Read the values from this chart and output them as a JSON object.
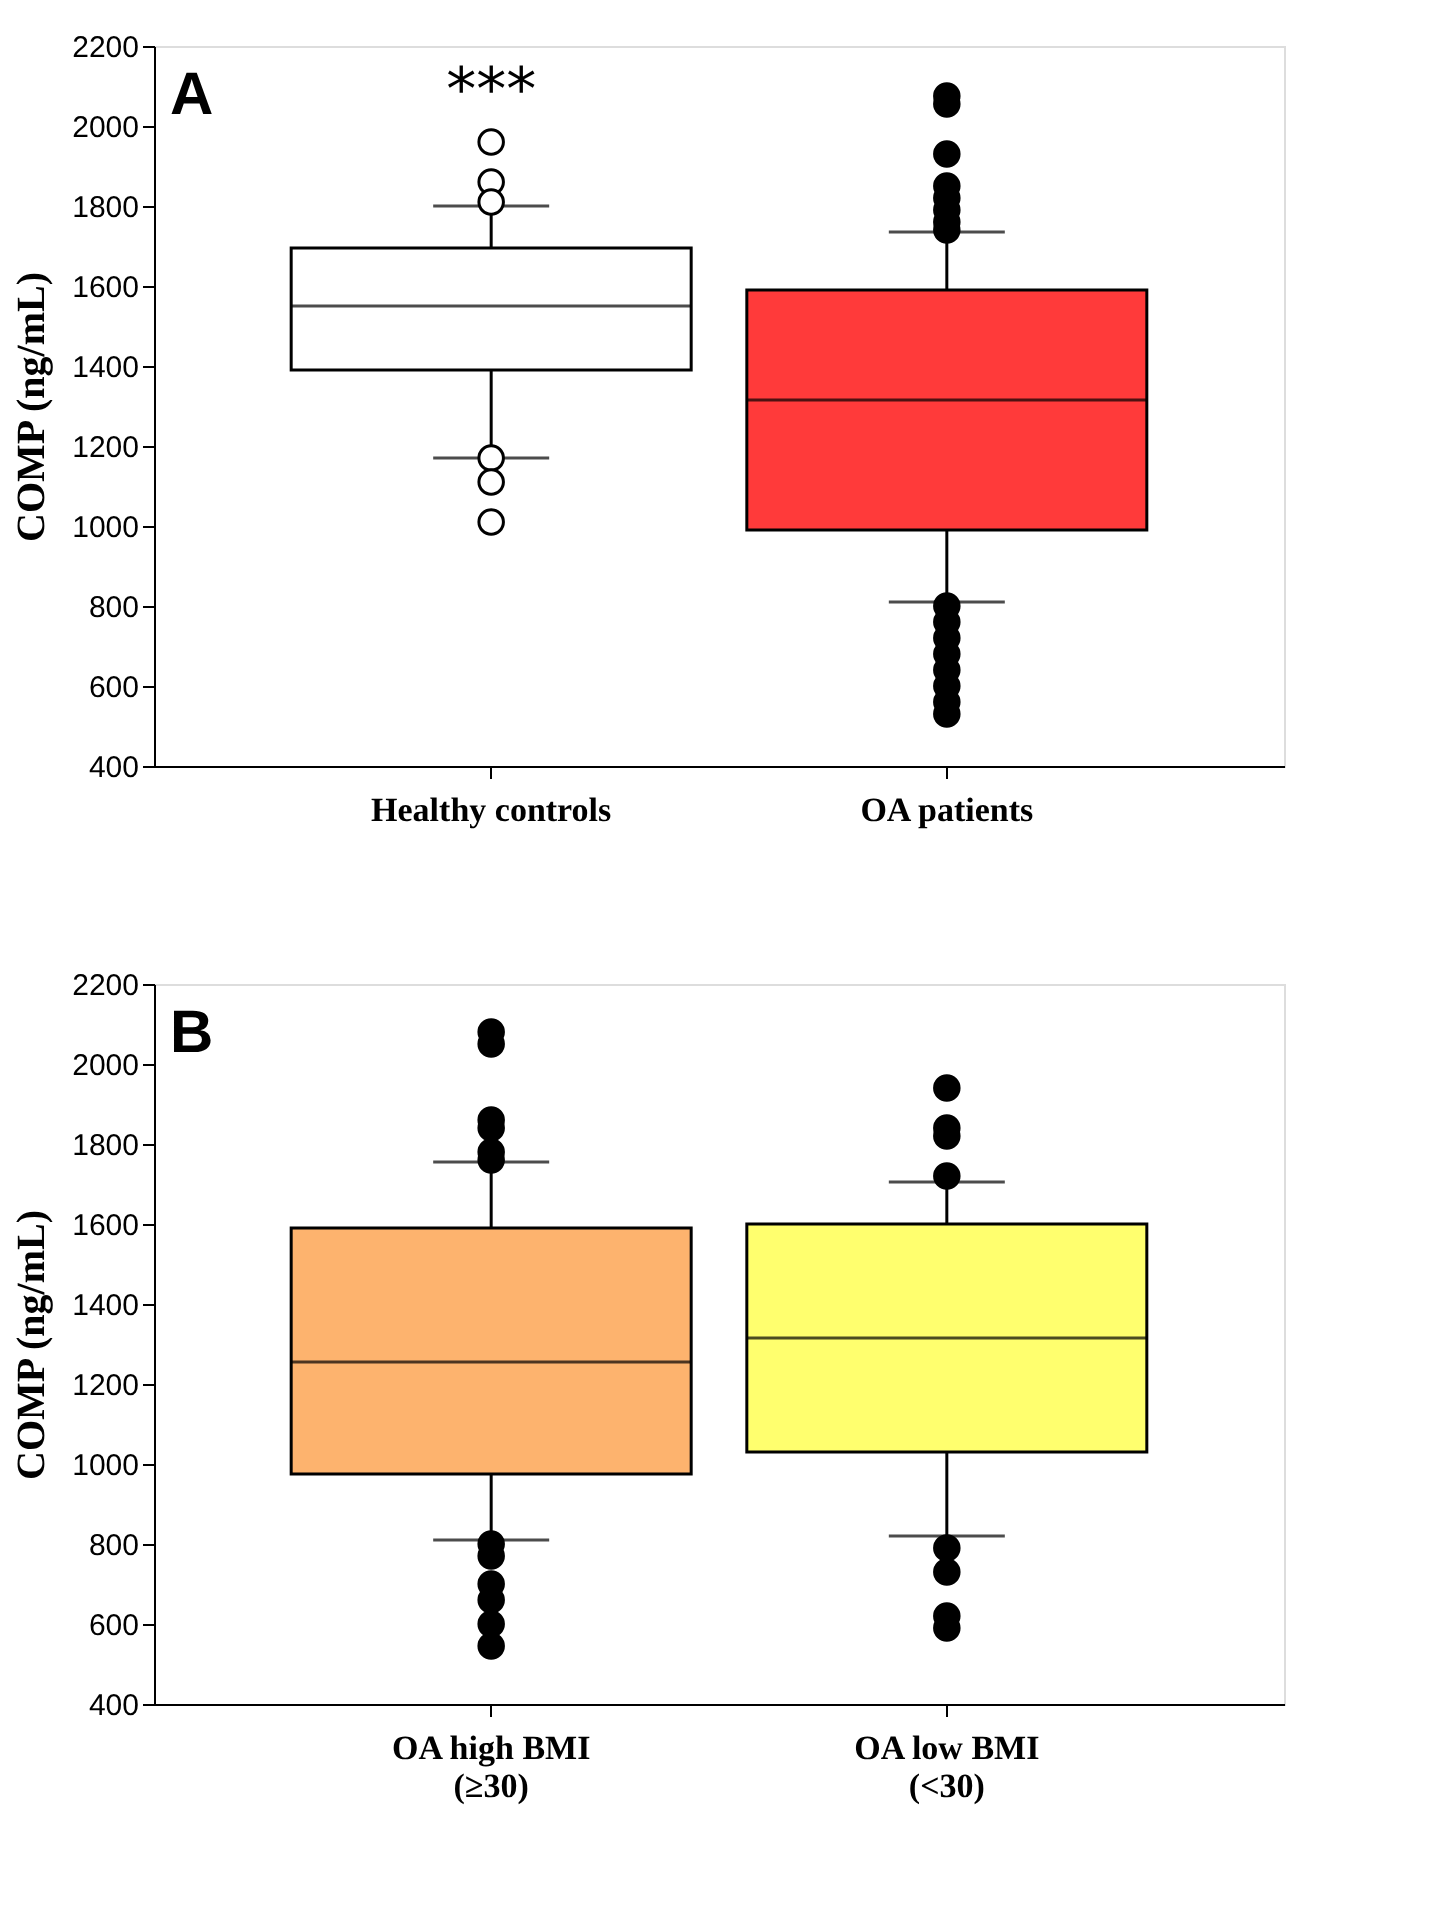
{
  "chart_data": [
    {
      "type": "box",
      "ylabel": "COMP (ng/mL)",
      "categories": [
        "Healthy controls",
        "OA patients"
      ],
      "colors": [
        "#ffffff",
        "#ff3a3a"
      ],
      "ylim": [
        400,
        2200
      ],
      "yticks": [
        400,
        600,
        800,
        1000,
        1200,
        1400,
        1600,
        1800,
        2000,
        2200
      ],
      "grid": false,
      "boxes": [
        {
          "low": 1170,
          "q1": 1390,
          "median": 1550,
          "q3": 1695,
          "high": 1800,
          "outliers": [
            1960,
            1860,
            1810,
            1170,
            1110,
            1010
          ]
        },
        {
          "low": 810,
          "q1": 990,
          "median": 1315,
          "q3": 1590,
          "high": 1735,
          "outliers": [
            2075,
            2055,
            1930,
            1850,
            1820,
            1790,
            1760,
            1740,
            800,
            760,
            720,
            680,
            640,
            600,
            560,
            530
          ]
        }
      ],
      "annotations": [
        "A",
        "***"
      ]
    },
    {
      "type": "box",
      "ylabel": "COMP (ng/mL)",
      "categories": [
        "OA high BMI\n(≥30)",
        "OA low  BMI\n(<30)"
      ],
      "colors": [
        "#fdb36e",
        "#ffff6e"
      ],
      "ylim": [
        400,
        2200
      ],
      "yticks": [
        400,
        600,
        800,
        1000,
        1200,
        1400,
        1600,
        1800,
        2000,
        2200
      ],
      "grid": false,
      "boxes": [
        {
          "low": 810,
          "q1": 975,
          "median": 1255,
          "q3": 1590,
          "high": 1755,
          "outliers": [
            2080,
            2050,
            1860,
            1840,
            1780,
            1760,
            800,
            770,
            700,
            660,
            600,
            545
          ]
        },
        {
          "low": 820,
          "q1": 1030,
          "median": 1315,
          "q3": 1600,
          "high": 1705,
          "outliers": [
            1940,
            1840,
            1820,
            1720,
            790,
            730,
            620,
            590
          ]
        }
      ],
      "annotations": [
        "B"
      ]
    }
  ]
}
